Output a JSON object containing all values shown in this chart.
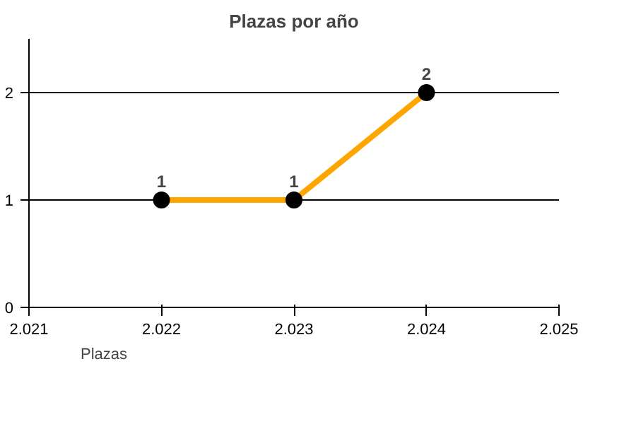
{
  "chart_data": {
    "type": "line",
    "title": "Plazas por año",
    "x": [
      2022,
      2023,
      2024
    ],
    "series": [
      {
        "name": "Plazas",
        "color": "#ffa500",
        "values": [
          1,
          1,
          2
        ]
      }
    ],
    "xlim": [
      2021,
      2025
    ],
    "xticks": [
      {
        "value": 2021,
        "label": "2.021"
      },
      {
        "value": 2022,
        "label": "2.022"
      },
      {
        "value": 2023,
        "label": "2.023"
      },
      {
        "value": 2024,
        "label": "2.024"
      },
      {
        "value": 2025,
        "label": "2.025"
      }
    ],
    "ylim": [
      0,
      2.5
    ],
    "yticks": [
      0,
      1,
      2
    ],
    "grid": "y",
    "legend": "bottom left",
    "marker": "circle",
    "data_labels": true
  }
}
